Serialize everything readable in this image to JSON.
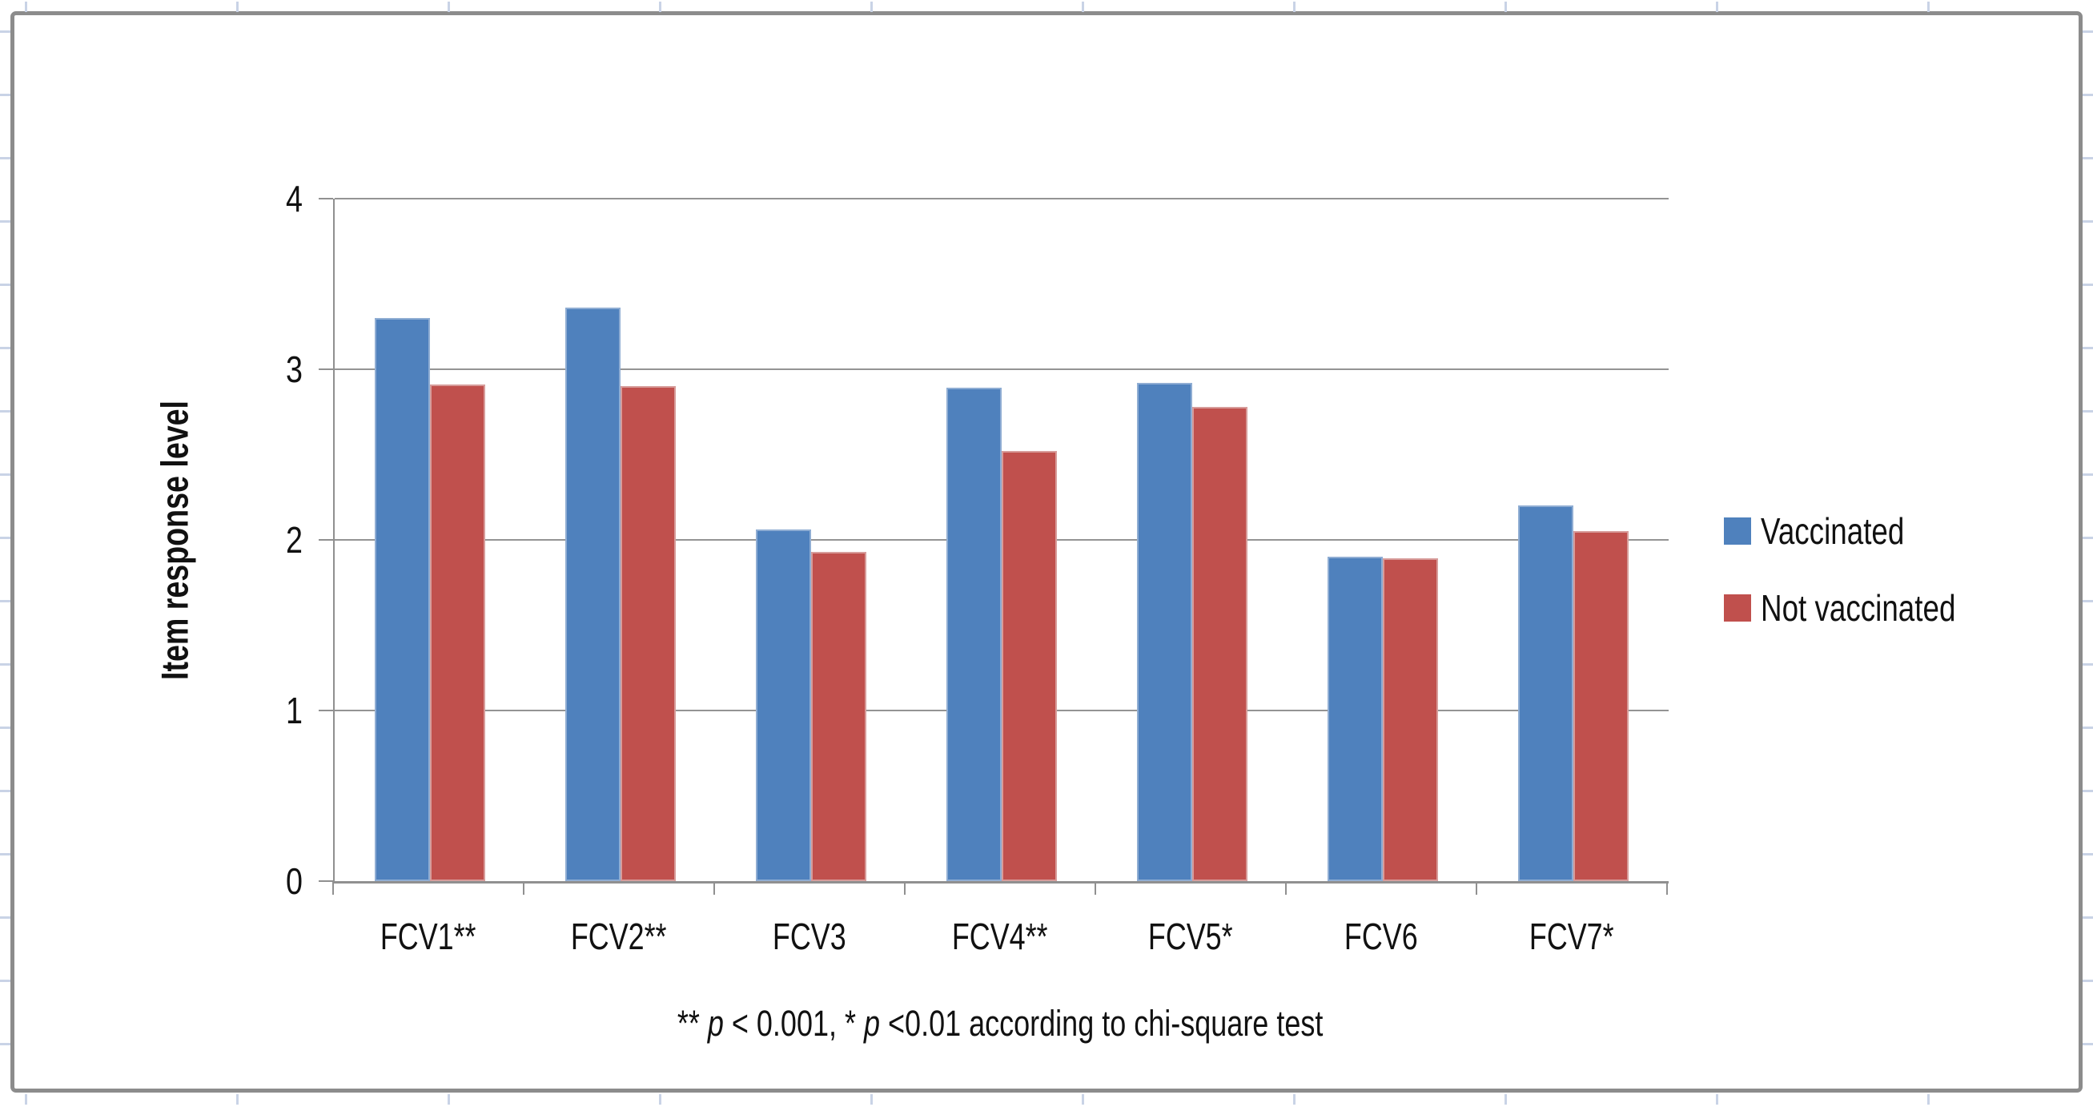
{
  "figure": {
    "y_axis_title": "Item response level",
    "footnote_parts": {
      "stars2": "** ",
      "p1": "p",
      "mid": " < 0.001,  * ",
      "p2": "p",
      "rest": " <0.01 according to chi-square test"
    }
  },
  "chart_data": {
    "type": "bar",
    "title": "",
    "categories": [
      "FCV1**",
      "FCV2**",
      "FCV3",
      "FCV4**",
      "FCV5*",
      "FCV6",
      "FCV7*"
    ],
    "series": [
      {
        "name": "Vaccinated",
        "color": "#4F81BD",
        "values": [
          3.3,
          3.36,
          2.06,
          2.89,
          2.92,
          1.9,
          2.2
        ]
      },
      {
        "name": "Not vaccinated",
        "color": "#C0504D",
        "values": [
          2.91,
          2.9,
          1.93,
          2.52,
          2.78,
          1.89,
          2.05
        ]
      }
    ],
    "xlabel": "",
    "ylabel": "Item response level",
    "ylim": [
      0,
      4
    ],
    "yticks": [
      0,
      1,
      2,
      3,
      4
    ],
    "grid": true,
    "legend_position": "right",
    "footnote": "** p < 0.001, * p <0.01 according to chi-square test"
  }
}
